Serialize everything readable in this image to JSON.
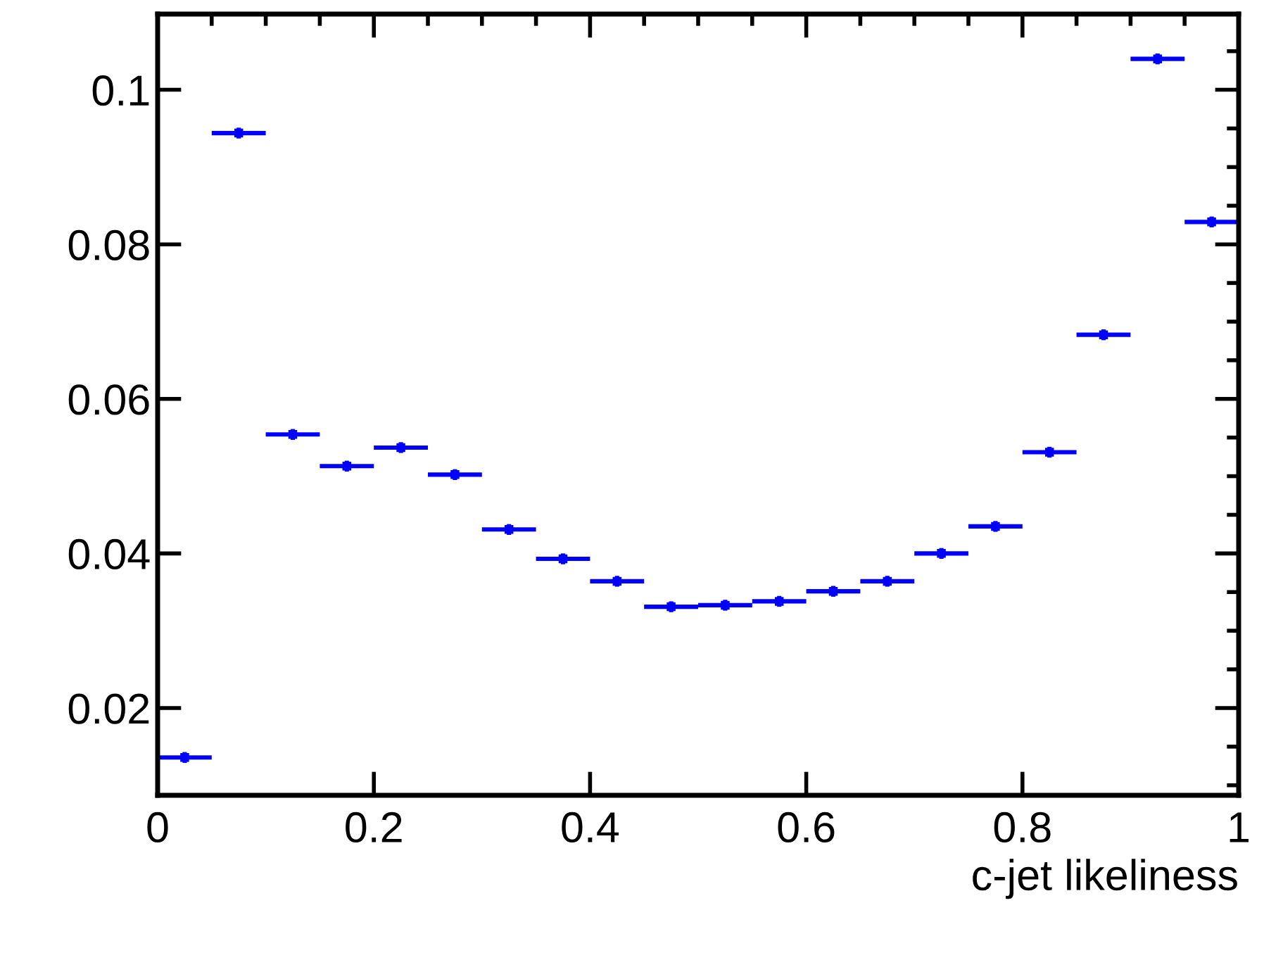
{
  "chart_data": {
    "type": "scatter",
    "xlabel": "c-jet likeliness",
    "x": [
      0.025,
      0.075,
      0.125,
      0.175,
      0.225,
      0.275,
      0.325,
      0.375,
      0.425,
      0.475,
      0.525,
      0.575,
      0.625,
      0.675,
      0.725,
      0.775,
      0.825,
      0.875,
      0.925,
      0.975
    ],
    "series": [
      {
        "color": "#0000ff",
        "values": [
          0.0136,
          0.0944,
          0.0554,
          0.0513,
          0.0537,
          0.0502,
          0.0431,
          0.0393,
          0.0364,
          0.0331,
          0.0333,
          0.0338,
          0.0351,
          0.0364,
          0.04,
          0.0435,
          0.0531,
          0.0683,
          0.104,
          0.0829
        ],
        "xerrors": [
          0.025,
          0.025,
          0.025,
          0.025,
          0.025,
          0.025,
          0.025,
          0.025,
          0.025,
          0.025,
          0.025,
          0.025,
          0.025,
          0.025,
          0.025,
          0.025,
          0.025,
          0.025,
          0.025,
          0.025
        ],
        "errors": [
          0.0007,
          0.0007,
          0.0007,
          0.0007,
          0.0007,
          0.0007,
          0.0007,
          0.0007,
          0.0007,
          0.0007,
          0.0007,
          0.0007,
          0.0007,
          0.0007,
          0.0007,
          0.0007,
          0.0007,
          0.0007,
          0.0007,
          0.0007
        ]
      }
    ],
    "marker": "square",
    "grid": false,
    "legend": false,
    "xlim": [
      0,
      1
    ],
    "xticks": [
      0,
      0.2,
      0.4,
      0.6,
      0.8,
      1
    ],
    "ylim": [
      0.0087,
      0.1098
    ],
    "yticks": [
      0.02,
      0.04,
      0.06,
      0.08,
      0.1
    ]
  }
}
